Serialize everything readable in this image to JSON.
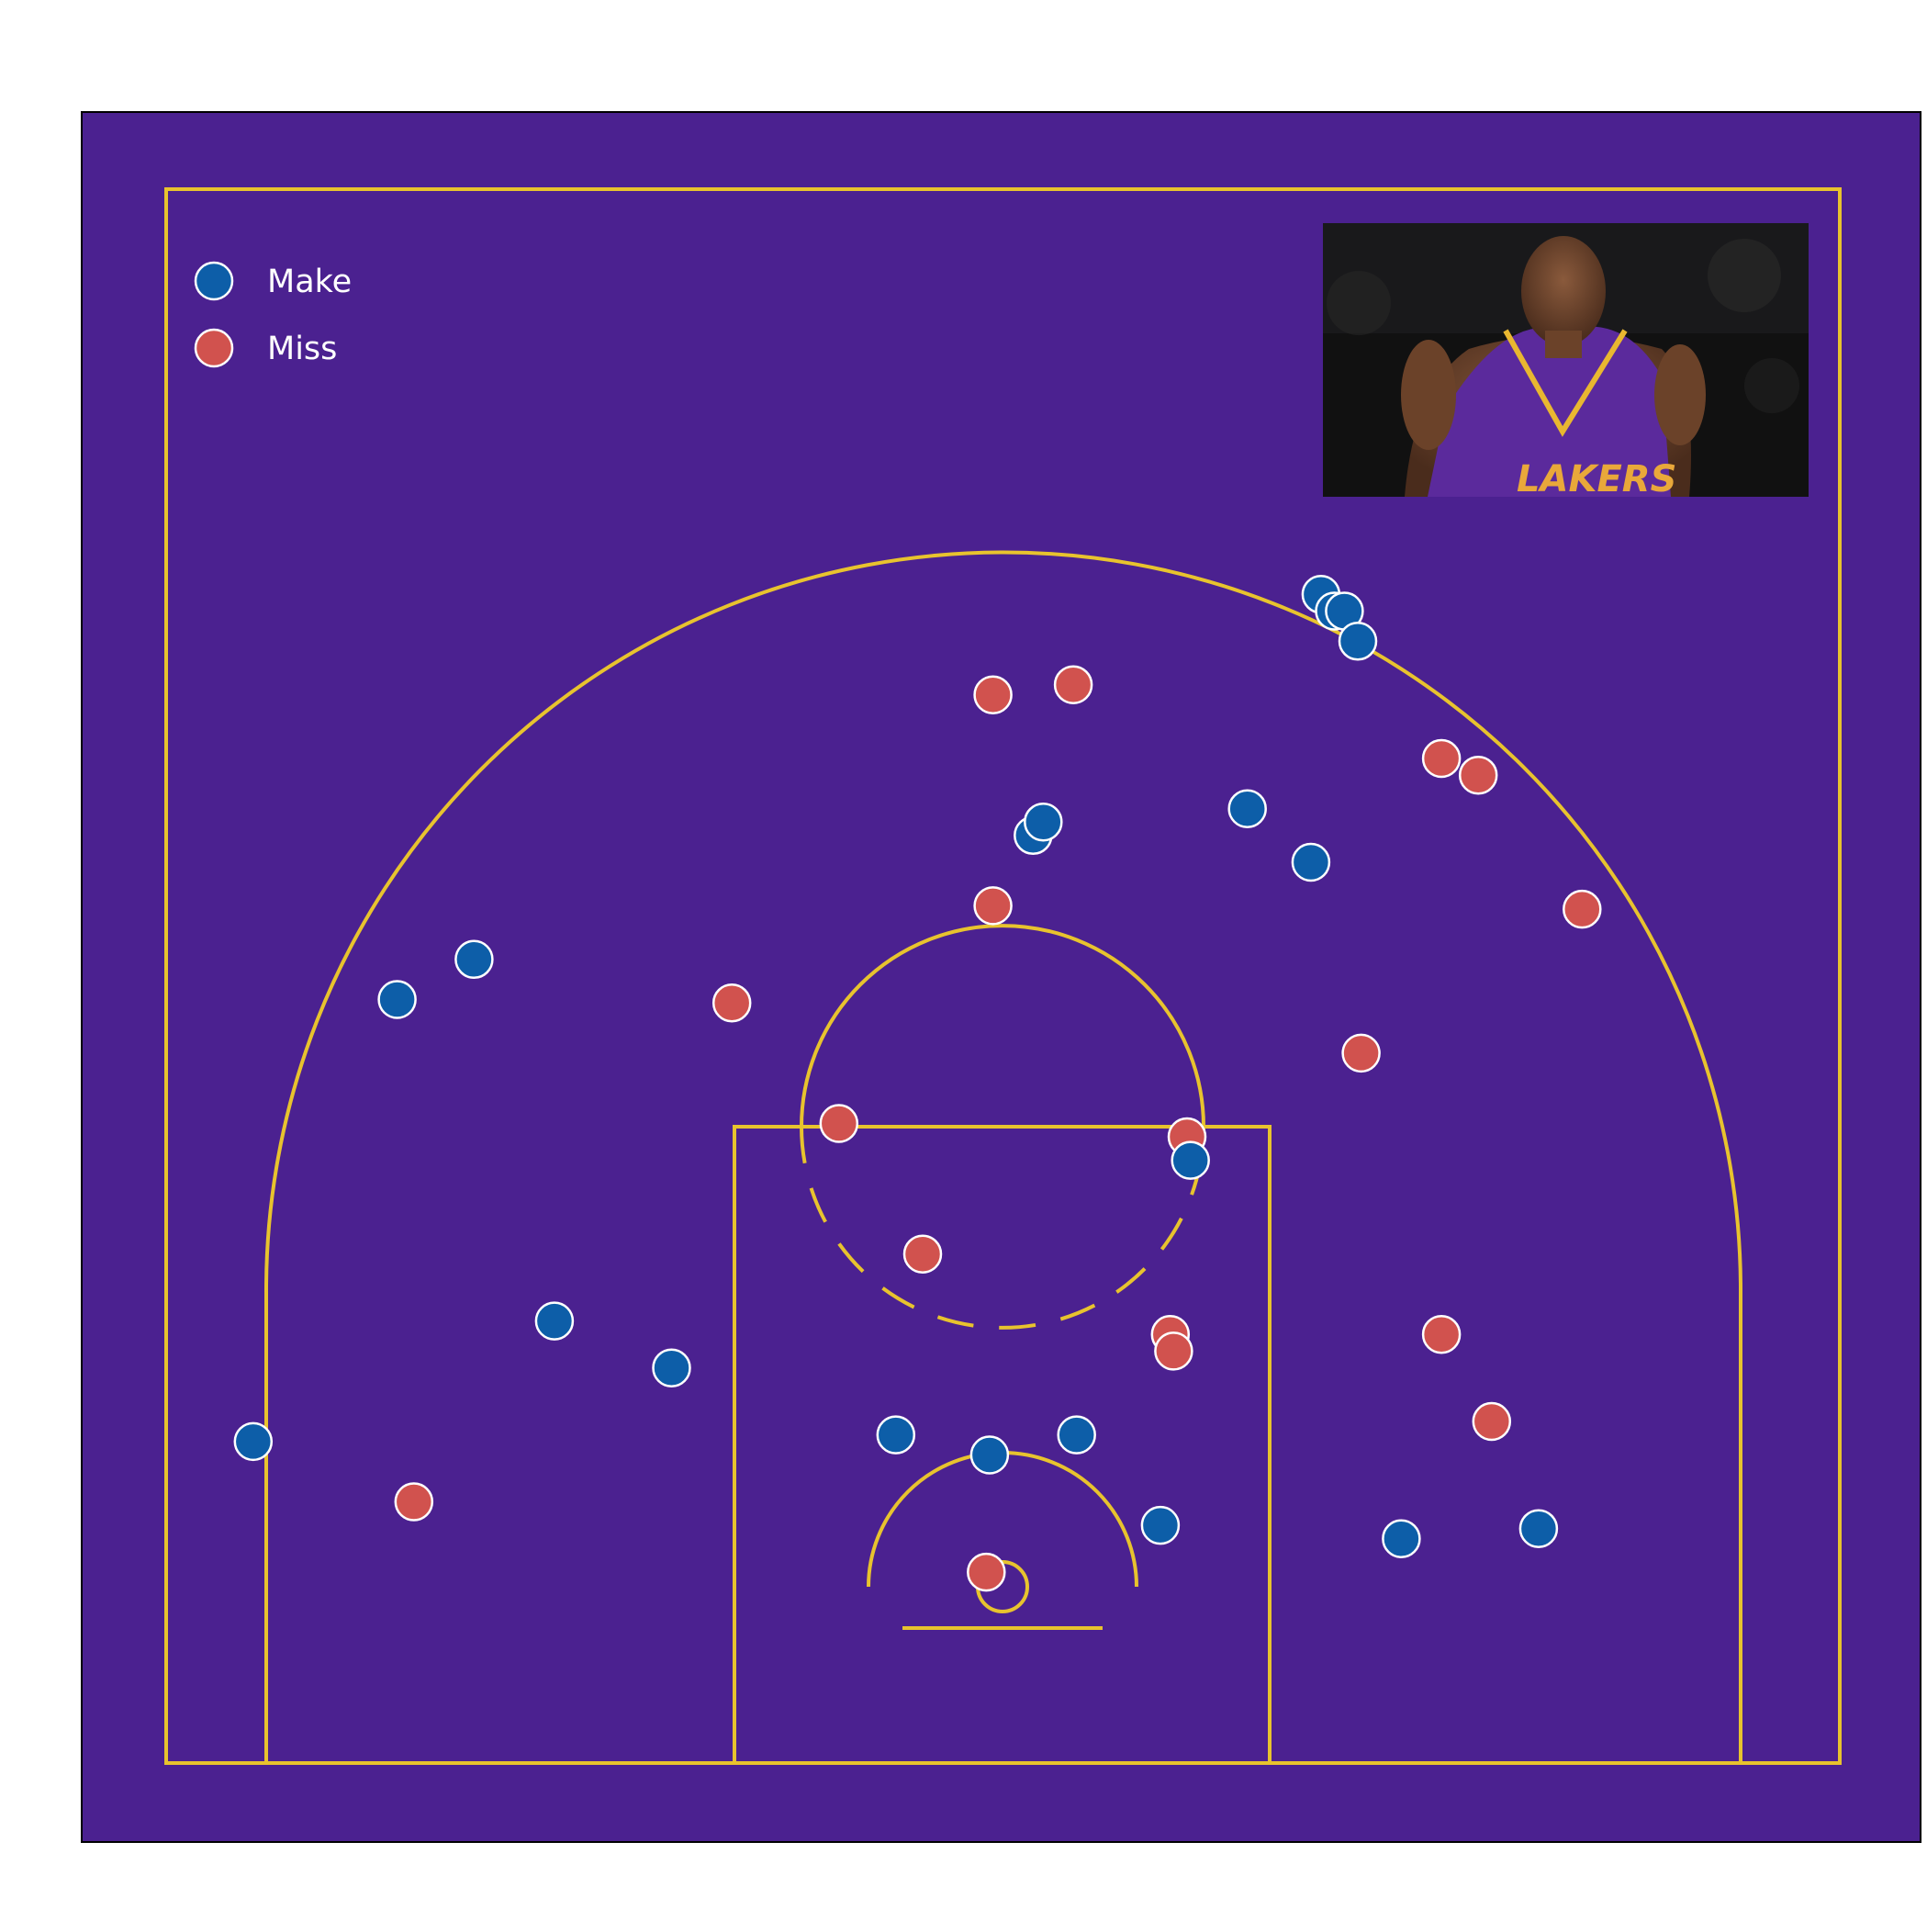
{
  "chart_data": {
    "type": "scatter",
    "title": "",
    "xlabel": "",
    "ylabel": "",
    "grid": false,
    "legend_position": "top-left",
    "xlim": [
      -250,
      250
    ],
    "ylim": [
      -52,
      418
    ],
    "axes_visible": false,
    "background": "shot chart on a half basketball court",
    "series": [
      {
        "name": "Make",
        "color": "#0d5ea8",
        "points": [
          [
            -224,
            44
          ],
          [
            -134,
            80
          ],
          [
            -99,
            66
          ],
          [
            -158,
            188
          ],
          [
            -181,
            176
          ],
          [
            -32,
            46
          ],
          [
            -4,
            40
          ],
          [
            22,
            46
          ],
          [
            47,
            19
          ],
          [
            56,
            128
          ],
          [
            73,
            233
          ],
          [
            92,
            217
          ],
          [
            95,
            297
          ],
          [
            99,
            292
          ],
          [
            102,
            292
          ],
          [
            106,
            283
          ],
          [
            119,
            15
          ],
          [
            160,
            18
          ],
          [
            9,
            225
          ],
          [
            12,
            229
          ]
        ]
      },
      {
        "name": "Miss",
        "color": "#d1524e",
        "points": [
          [
            -176,
            26
          ],
          [
            -81,
            175
          ],
          [
            -49,
            139
          ],
          [
            -24,
            100
          ],
          [
            -5,
            5
          ],
          [
            -3,
            204
          ],
          [
            -3,
            267
          ],
          [
            21,
            270
          ],
          [
            50,
            76
          ],
          [
            51,
            71
          ],
          [
            55,
            135
          ],
          [
            107,
            160
          ],
          [
            131,
            248
          ],
          [
            142,
            243
          ],
          [
            173,
            203
          ],
          [
            131,
            76
          ],
          [
            146,
            50
          ]
        ]
      }
    ]
  },
  "legend": {
    "make_label": "Make",
    "miss_label": "Miss"
  },
  "colors": {
    "court": "#4b2190",
    "lines": "#e8c32e",
    "marker_edge": "#ffffff",
    "text": "#ffffff"
  },
  "inset_image": {
    "description": "photo of player in purple and gold jersey",
    "jersey_text": "LAKERS"
  }
}
